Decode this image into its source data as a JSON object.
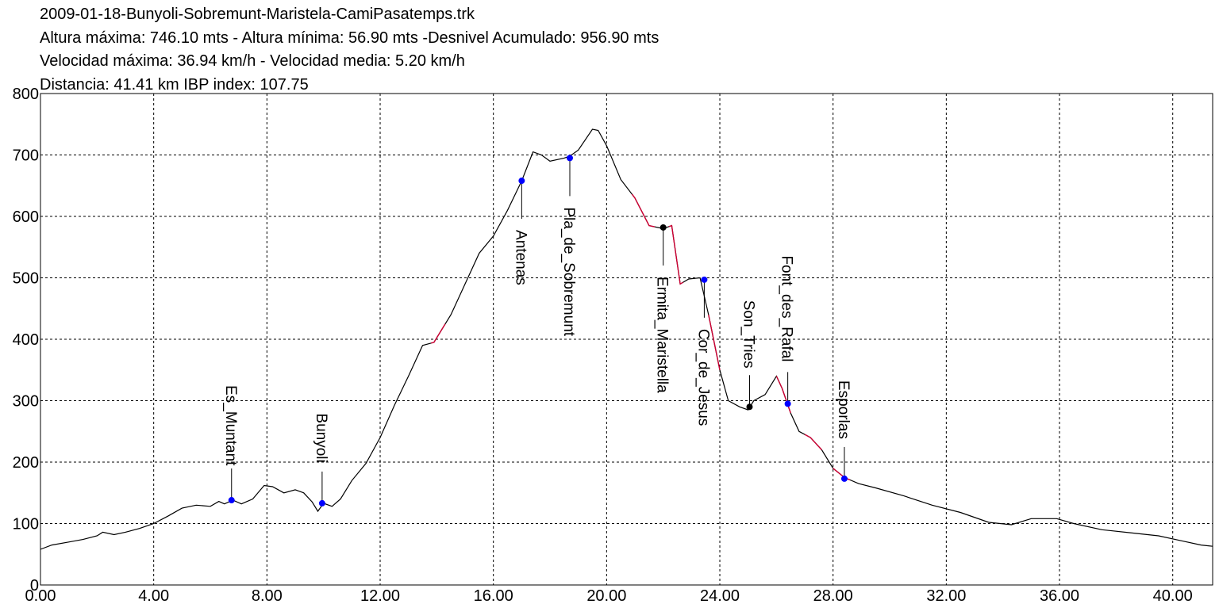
{
  "header": {
    "file": "2009-01-18-Bunyoli-Sobremunt-Maristela-CamiPasatemps.trk",
    "line2": "Altura máxima: 746.10 mts - Altura mínima: 56.90 mts -Desnivel Acumulado: 956.90 mts",
    "line3": "Velocidad máxima: 36.94 km/h - Velocidad media: 5.20 km/h",
    "line4": "Distancia: 41.41 km IBP index: 107.75"
  },
  "chart_data": {
    "type": "line",
    "title": "2009-01-18-Bunyoli-Sobremunt-Maristela-CamiPasatemps.trk",
    "xlabel": "",
    "ylabel": "",
    "xlim": [
      0,
      41.41
    ],
    "ylim": [
      0,
      800
    ],
    "grid": true,
    "x_ticks": [
      "0.00",
      "4.00",
      "8.00",
      "12.00",
      "16.00",
      "20.00",
      "24.00",
      "28.00",
      "32.00",
      "36.00",
      "40.00"
    ],
    "y_ticks": [
      "0",
      "100",
      "200",
      "300",
      "400",
      "500",
      "600",
      "700",
      "800"
    ],
    "colors": {
      "line": "#000000",
      "steep": "#cc0033",
      "waypoint": "#0000ff",
      "grid": "#000000"
    },
    "series": [
      {
        "x": [
          0.0,
          0.4,
          1.0,
          1.5,
          2.0,
          2.2,
          2.6,
          3.0,
          3.5,
          4.0,
          4.5,
          5.0,
          5.5,
          6.0,
          6.3,
          6.5,
          6.8,
          7.1,
          7.5,
          7.9,
          8.2,
          8.6,
          9.0,
          9.3,
          9.6,
          9.8,
          10.0,
          10.3,
          10.6,
          11.0,
          11.5,
          12.0,
          12.5,
          13.0,
          13.5,
          13.9,
          14.1,
          14.5,
          15.0,
          15.5,
          16.0,
          16.5,
          17.0,
          17.4,
          17.7,
          18.0,
          18.5,
          18.7,
          19.0,
          19.5,
          19.7,
          20.0,
          20.5,
          21.0,
          21.5,
          22.0,
          22.3,
          22.6,
          22.9,
          23.3,
          23.6,
          24.0,
          24.3,
          24.7,
          25.0,
          25.2,
          25.6,
          26.0,
          26.2,
          26.5,
          26.8,
          27.2,
          27.6,
          28.0,
          28.4,
          28.9,
          29.5,
          30.5,
          31.5,
          32.5,
          33.5,
          34.3,
          35.0,
          35.9,
          36.5,
          37.5,
          38.5,
          39.5,
          40.3,
          41.0,
          41.41
        ],
        "y": [
          58,
          65,
          70,
          74,
          80,
          86,
          82,
          86,
          92,
          100,
          112,
          125,
          130,
          128,
          136,
          132,
          138,
          132,
          140,
          162,
          160,
          150,
          155,
          150,
          135,
          120,
          133,
          128,
          140,
          170,
          198,
          240,
          292,
          340,
          390,
          395,
          410,
          440,
          490,
          540,
          568,
          610,
          658,
          705,
          700,
          690,
          695,
          698,
          708,
          742,
          740,
          715,
          660,
          630,
          585,
          580,
          585,
          490,
          498,
          500,
          440,
          350,
          300,
          290,
          285,
          300,
          310,
          340,
          320,
          280,
          250,
          240,
          220,
          190,
          175,
          165,
          158,
          145,
          130,
          118,
          102,
          98,
          108,
          108,
          100,
          90,
          85,
          80,
          72,
          65,
          63
        ]
      }
    ],
    "steep_segments": [
      [
        13.8,
        14.3
      ],
      [
        20.9,
        21.7
      ],
      [
        22.2,
        22.7
      ],
      [
        23.6,
        24.0
      ],
      [
        26.0,
        26.5
      ],
      [
        27.0,
        27.6
      ],
      [
        28.0,
        28.6
      ]
    ],
    "waypoints": [
      {
        "name": "Es_Muntant",
        "x": 6.75,
        "y": 138,
        "color": "#0000ff"
      },
      {
        "name": "Bunyoli",
        "x": 9.95,
        "y": 133,
        "color": "#0000ff"
      },
      {
        "name": "Antenas",
        "x": 17.0,
        "y": 658,
        "color": "#0000ff"
      },
      {
        "name": "Pla_de_Sobremunt",
        "x": 18.7,
        "y": 695,
        "color": "#0000ff"
      },
      {
        "name": "Ermita_Maristella",
        "x": 22.0,
        "y": 582,
        "color": "#000000"
      },
      {
        "name": "Cor_de_Jesus",
        "x": 23.45,
        "y": 497,
        "color": "#0000ff"
      },
      {
        "name": "Son_Tries",
        "x": 25.05,
        "y": 290,
        "color": "#000000"
      },
      {
        "name": "Font_des_Rafal",
        "x": 26.4,
        "y": 295,
        "color": "#0000ff"
      },
      {
        "name": "Esporlas",
        "x": 28.4,
        "y": 173,
        "color": "#0000ff"
      }
    ]
  }
}
